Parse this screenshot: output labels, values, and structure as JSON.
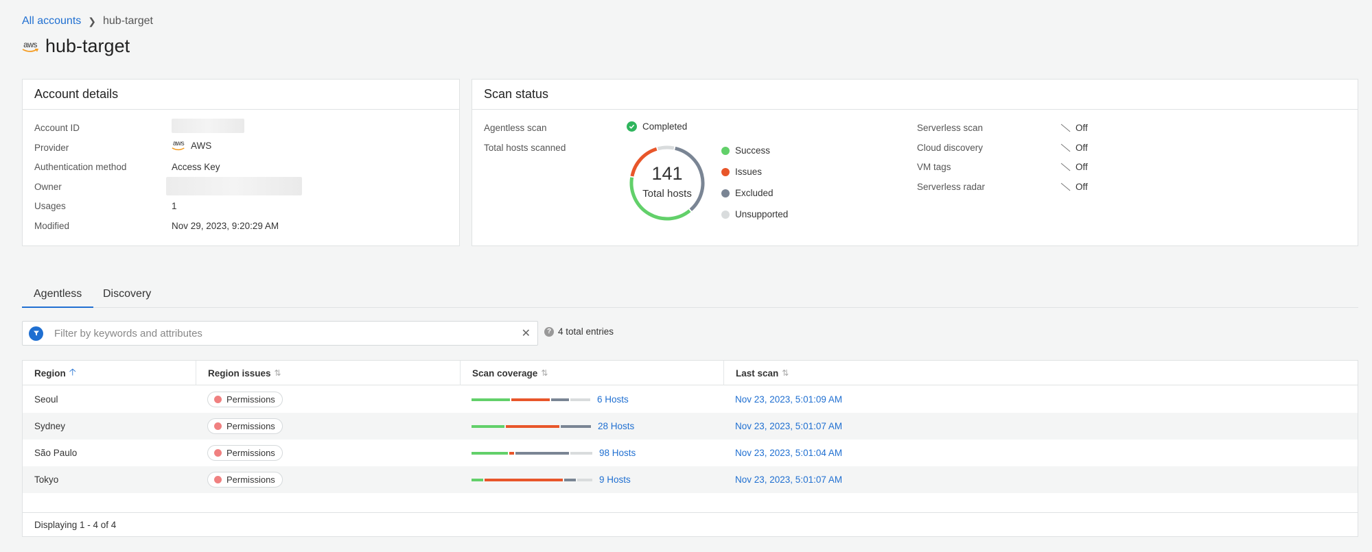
{
  "breadcrumb": {
    "root": "All accounts",
    "current": "hub-target"
  },
  "page": {
    "logo_text": "aws",
    "title": "hub-target"
  },
  "account_details": {
    "title": "Account details",
    "rows": [
      {
        "key": "Account ID",
        "value": ""
      },
      {
        "key": "Provider",
        "value": "AWS",
        "logo_text": "aws"
      },
      {
        "key": "Authentication method",
        "value": "Access Key"
      },
      {
        "key": "Owner",
        "value": ""
      },
      {
        "key": "Usages",
        "value": "1"
      },
      {
        "key": "Modified",
        "value": "Nov 29, 2023, 9:20:29 AM"
      }
    ]
  },
  "scan_status": {
    "title": "Scan status",
    "agentless_label": "Agentless scan",
    "agentless_value": "Completed",
    "total_label": "Total hosts scanned",
    "total_value": "141",
    "total_caption": "Total hosts",
    "donut": {
      "success": 55,
      "issues": 25,
      "excluded": 50,
      "unsupported": 11
    },
    "legend": [
      {
        "label": "Success",
        "color": "#62d06a"
      },
      {
        "label": "Issues",
        "color": "#e8562a"
      },
      {
        "label": "Excluded",
        "color": "#7a8594"
      },
      {
        "label": "Unsupported",
        "color": "#d9dcdd"
      }
    ],
    "features": [
      {
        "key": "Serverless scan",
        "value": "Off"
      },
      {
        "key": "Cloud discovery",
        "value": "Off"
      },
      {
        "key": "VM tags",
        "value": "Off"
      },
      {
        "key": "Serverless radar",
        "value": "Off"
      }
    ]
  },
  "tabs": [
    {
      "label": "Agentless"
    },
    {
      "label": "Discovery"
    }
  ],
  "filter": {
    "placeholder": "Filter by keywords and attributes",
    "total": "4 total entries"
  },
  "table": {
    "columns": [
      "Region",
      "Region issues",
      "Scan coverage",
      "Last scan"
    ],
    "rows": [
      {
        "region": "Seoul",
        "issue": "Permissions",
        "coverage": [
          0.33,
          0.33,
          0.15,
          0.17
        ],
        "hosts": "6 Hosts",
        "last_scan": "Nov 23, 2023, 5:01:09 AM"
      },
      {
        "region": "Sydney",
        "issue": "Permissions",
        "coverage": [
          0.28,
          0.46,
          0.26,
          0.0
        ],
        "hosts": "28 Hosts",
        "last_scan": "Nov 23, 2023, 5:01:07 AM"
      },
      {
        "region": "São Paulo",
        "issue": "Permissions",
        "coverage": [
          0.31,
          0.04,
          0.46,
          0.19
        ],
        "hosts": "98 Hosts",
        "last_scan": "Nov 23, 2023, 5:01:04 AM"
      },
      {
        "region": "Tokyo",
        "issue": "Permissions",
        "coverage": [
          0.1,
          0.67,
          0.1,
          0.13
        ],
        "hosts": "9 Hosts",
        "last_scan": "Nov 23, 2023, 5:01:07 AM"
      }
    ],
    "footer": "Displaying 1 - 4 of 4"
  },
  "colors": {
    "success": "#62d06a",
    "issues": "#e8562a",
    "excluded": "#7a8594",
    "unsupported": "#d9dcdd",
    "accent": "#1f6fd1"
  }
}
